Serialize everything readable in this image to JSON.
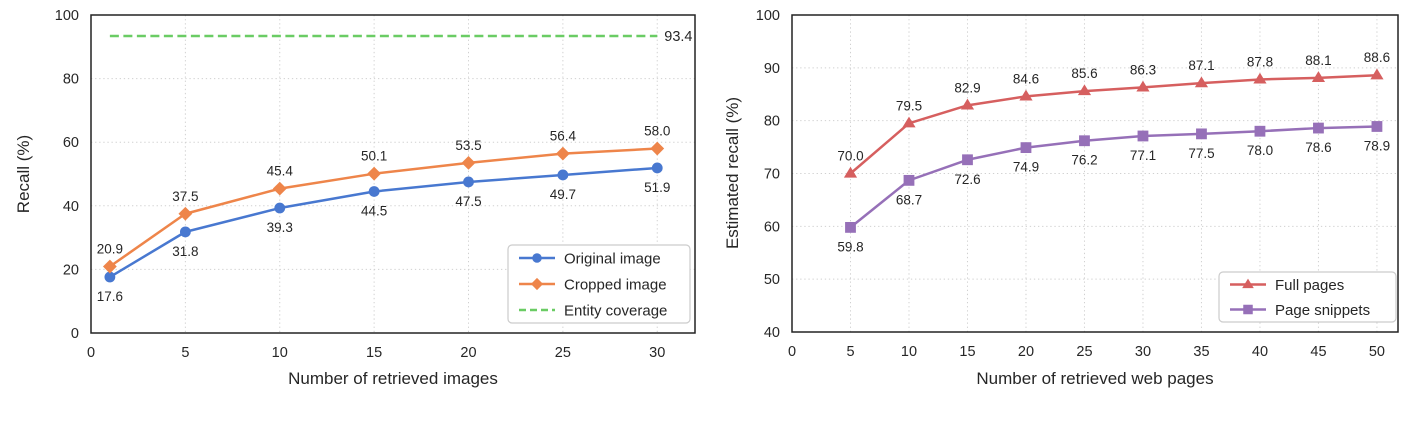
{
  "chart_data": [
    {
      "type": "line",
      "title": "",
      "xlabel": "Number of retrieved images",
      "ylabel": "Recall (%)",
      "xlim": [
        0,
        32
      ],
      "ylim": [
        0,
        100
      ],
      "xticks": [
        0,
        5,
        10,
        15,
        20,
        25,
        30
      ],
      "yticks": [
        0,
        20,
        40,
        60,
        80,
        100
      ],
      "grid": true,
      "legend_position": "lower right",
      "x": [
        1,
        5,
        10,
        15,
        20,
        25,
        30
      ],
      "series": [
        {
          "name": "Original image",
          "color": "#4878d0",
          "marker": "circle",
          "values": [
            17.6,
            31.8,
            39.3,
            44.5,
            47.5,
            49.7,
            51.9
          ],
          "label_side": "below"
        },
        {
          "name": "Cropped image",
          "color": "#ee854a",
          "marker": "diamond",
          "values": [
            20.9,
            37.5,
            45.4,
            50.1,
            53.5,
            56.4,
            58.0
          ],
          "label_side": "above"
        }
      ],
      "hline": {
        "name": "Entity coverage",
        "color": "#6acc64",
        "style": "dashed",
        "value": 93.4,
        "label": "93.4",
        "x_start": 1,
        "x_end": 30
      }
    },
    {
      "type": "line",
      "title": "",
      "xlabel": "Number of retrieved web pages",
      "ylabel": "Estimated recall (%)",
      "xlim": [
        0,
        51.8
      ],
      "ylim": [
        40,
        100
      ],
      "xticks": [
        0,
        5,
        10,
        15,
        20,
        25,
        30,
        35,
        40,
        45,
        50
      ],
      "yticks": [
        40,
        50,
        60,
        70,
        80,
        90,
        100
      ],
      "grid": true,
      "legend_position": "lower right",
      "x": [
        5,
        10,
        15,
        20,
        25,
        30,
        35,
        40,
        45,
        50
      ],
      "series": [
        {
          "name": "Full pages",
          "color": "#d65f5f",
          "marker": "triangle",
          "values": [
            70.0,
            79.5,
            82.9,
            84.6,
            85.6,
            86.3,
            87.1,
            87.8,
            88.1,
            88.6
          ],
          "label_side": "above"
        },
        {
          "name": "Page snippets",
          "color": "#9670b8",
          "marker": "square",
          "values": [
            59.8,
            68.7,
            72.6,
            74.9,
            76.2,
            77.1,
            77.5,
            78.0,
            78.6,
            78.9
          ],
          "label_side": "below"
        }
      ]
    }
  ],
  "style_colors": {
    "grid": "#d0d0d0",
    "spine": "#222222",
    "text": "#262626",
    "legend_border": "#cccccc",
    "background": "#ffffff"
  }
}
